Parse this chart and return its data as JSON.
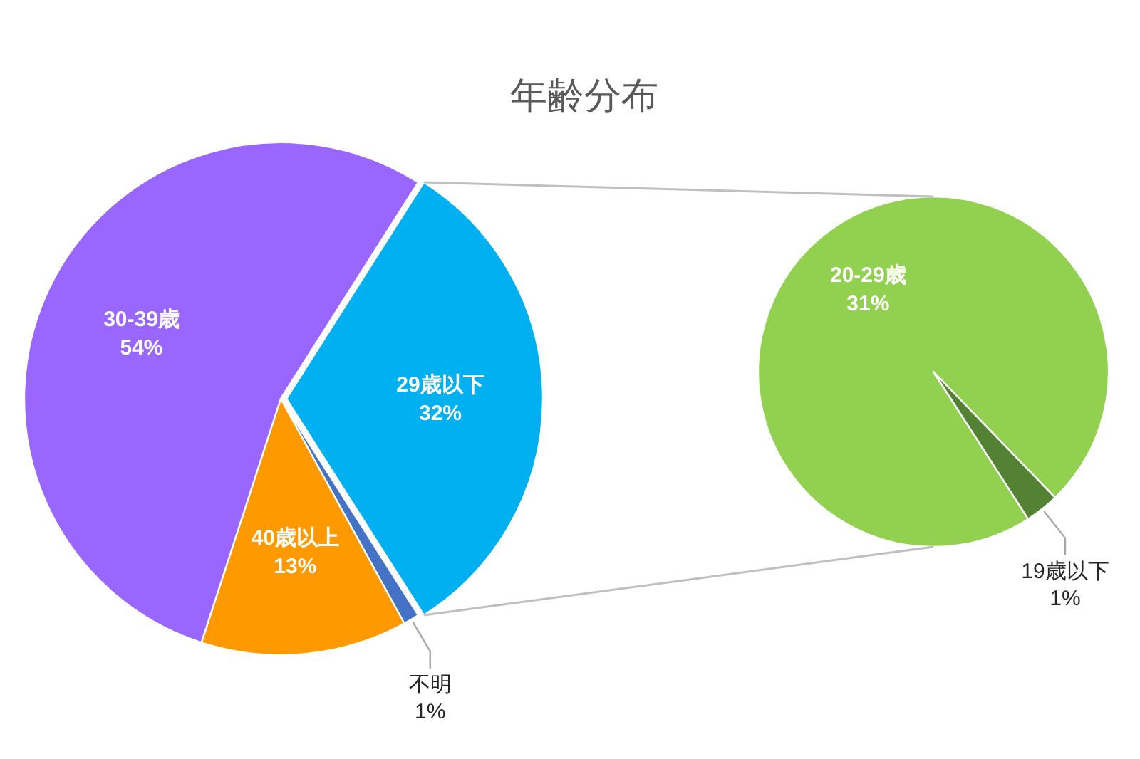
{
  "chart_data": [
    {
      "type": "pie",
      "title": "年齢分布",
      "categories": [
        "29歳以下",
        "不明",
        "40歳以上",
        "30-39歳"
      ],
      "values": [
        32,
        1,
        13,
        54
      ],
      "colors": [
        "#00b0f0",
        "#4472c4",
        "#ff9900",
        "#9966ff"
      ],
      "value_labels": [
        "32%",
        "1%",
        "13%",
        "54%"
      ]
    },
    {
      "type": "pie",
      "categories": [
        "20-29歳",
        "19歳以下"
      ],
      "values": [
        31,
        1
      ],
      "colors": [
        "#92d050",
        "#548235"
      ],
      "value_labels": [
        "31%",
        "1%"
      ]
    }
  ]
}
